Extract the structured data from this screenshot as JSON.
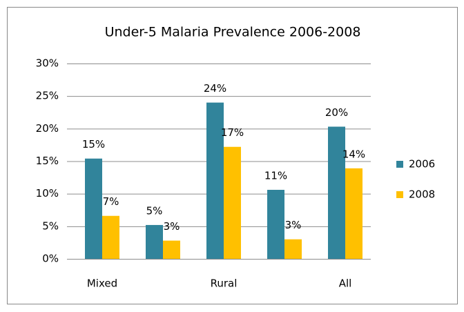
{
  "chart_data": {
    "type": "bar",
    "title": "Under-5 Malaria Prevalence 2006-2008",
    "categories": [
      "Mixed",
      null,
      "Rural",
      null,
      "All"
    ],
    "series": [
      {
        "name": "2006",
        "color": "#31849b",
        "values": [
          15.4,
          5.2,
          24.0,
          10.6,
          20.3
        ],
        "value_labels": [
          "15%",
          "5%",
          "24%",
          "11%",
          "20%"
        ]
      },
      {
        "name": "2008",
        "color": "#ffc000",
        "values": [
          6.6,
          2.8,
          17.2,
          3.0,
          13.9
        ],
        "value_labels": [
          "7%",
          "3%",
          "17%",
          "3%",
          "14%"
        ]
      }
    ],
    "ylim": [
      0,
      30
    ],
    "yticks": [
      {
        "value": 0,
        "label": "0%"
      },
      {
        "value": 5,
        "label": "5%"
      },
      {
        "value": 10,
        "label": "10%"
      },
      {
        "value": 15,
        "label": "15%"
      },
      {
        "value": 20,
        "label": "20%"
      },
      {
        "value": 25,
        "label": "25%"
      },
      {
        "value": 30,
        "label": "30%"
      }
    ],
    "grid": true,
    "legend": "right"
  }
}
